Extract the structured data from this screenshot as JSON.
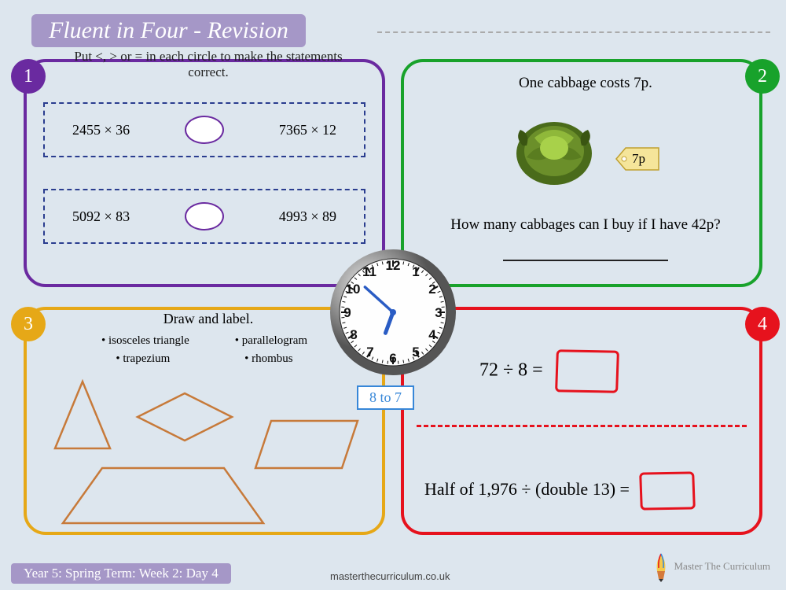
{
  "title": "Fluent in Four - Revision",
  "footer": "Year 5: Spring Term: Week 2: Day 4",
  "site": "masterthecurriculum.co.uk",
  "brand": "Master The Curriculum",
  "panels": {
    "p1": {
      "num": "1",
      "instruction": "Put <, > or = in each circle to make the statements correct.",
      "eq1_left": "2455 × 36",
      "eq1_right": "7365 × 12",
      "eq2_left": "5092 × 83",
      "eq2_right": "4993 × 89"
    },
    "p2": {
      "num": "2",
      "line1": "One cabbage costs 7p.",
      "price": "7p",
      "question": "How many cabbages can I buy if I have 42p?",
      "cabbage_color": "#4a6b1a",
      "cabbage_light": "#8fb83a"
    },
    "p3": {
      "num": "3",
      "title": "Draw and label.",
      "items": [
        "isosceles triangle",
        "parallelogram",
        "trapezium",
        "rhombus"
      ],
      "shape_stroke": "#c77a3a"
    },
    "p4": {
      "num": "4",
      "eq1": "72 ÷ 8 =",
      "eq2": "Half of 1,976 ÷ (double 13) ="
    }
  },
  "clock": {
    "label": "8 to 7",
    "hour_angle": 200,
    "minute_angle": 312,
    "face_color": "#fefefe",
    "rim_color": "#888",
    "rim_grad1": "#ddd",
    "rim_grad2": "#666"
  },
  "colors": {
    "bg": "#dde6ee",
    "title_bg": "#a597c7",
    "p1": "#6a2aa0",
    "p2": "#18a22b",
    "p3": "#e6a817",
    "p4": "#e6121d",
    "dash_box": "#2a3d8f"
  }
}
